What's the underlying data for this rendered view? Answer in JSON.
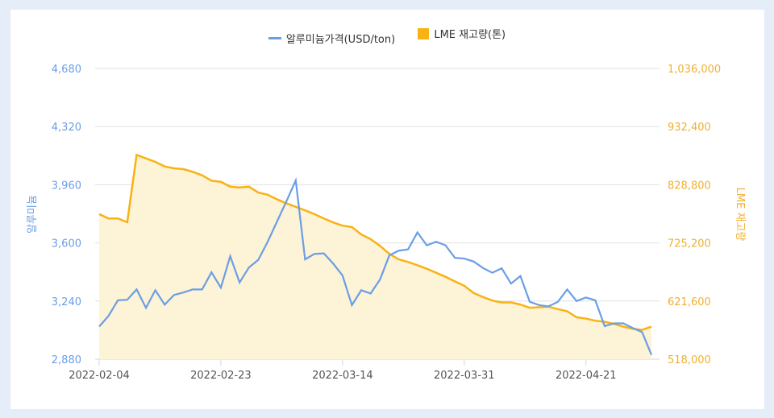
{
  "chart_data": {
    "type": "line+area",
    "legend": {
      "position": "top",
      "entries": [
        "알루미늄가격(USD/ton)",
        "LME 재고량(톤)"
      ]
    },
    "colors": {
      "price": "#6a9ee6",
      "inventory": "#f8b215",
      "inventory_fill": "#fdf3d6",
      "left_axis": "#6a9ee6",
      "right_axis": "#f0b030"
    },
    "y_left": {
      "label": "알루미늄",
      "range": [
        2880,
        4680
      ],
      "ticks": [
        "2,880",
        "3,240",
        "3,600",
        "3,960",
        "4,320",
        "4,680"
      ]
    },
    "y_right": {
      "label": "LME 재고량",
      "range": [
        518000,
        1036000
      ],
      "ticks": [
        "518,000",
        "621,600",
        "725,200",
        "828,800",
        "932,400",
        "1,036,000"
      ]
    },
    "x_ticks": [
      "2022-02-04",
      "2022-02-23",
      "2022-03-14",
      "2022-03-31",
      "2022-04-21"
    ],
    "x_tick_index": [
      0,
      13,
      26,
      39,
      52
    ],
    "grid": true,
    "series": [
      {
        "name": "알루미늄가격(USD/ton)",
        "axis": "left",
        "type": "line",
        "values": [
          3082,
          3148,
          3245,
          3248,
          3312,
          3198,
          3307,
          3218,
          3278,
          3293,
          3312,
          3312,
          3418,
          3323,
          3518,
          3355,
          3448,
          3495,
          3607,
          3732,
          3857,
          3987,
          3498,
          3532,
          3535,
          3472,
          3398,
          3215,
          3307,
          3287,
          3373,
          3523,
          3552,
          3560,
          3665,
          3585,
          3607,
          3585,
          3508,
          3503,
          3485,
          3445,
          3415,
          3443,
          3348,
          3395,
          3235,
          3215,
          3207,
          3235,
          3312,
          3240,
          3262,
          3245,
          3085,
          3102,
          3102,
          3073,
          3048,
          2907
        ]
      },
      {
        "name": "LME 재고량(톤)",
        "axis": "right",
        "type": "area",
        "values": [
          776500,
          768800,
          768800,
          762100,
          882000,
          875800,
          869600,
          861400,
          858100,
          856600,
          851800,
          845600,
          836000,
          834100,
          825400,
          824000,
          825400,
          814900,
          811000,
          802900,
          795700,
          789500,
          783200,
          776500,
          768800,
          761700,
          755900,
          753500,
          740300,
          731900,
          719900,
          705600,
          695900,
          691200,
          685400,
          679200,
          672000,
          664800,
          656600,
          648900,
          636000,
          628800,
          622500,
          619200,
          619200,
          615400,
          609600,
          610600,
          611500,
          607200,
          603400,
          592800,
          590400,
          586600,
          584700,
          580800,
          576000,
          572200,
          570300,
          576000
        ]
      }
    ]
  }
}
